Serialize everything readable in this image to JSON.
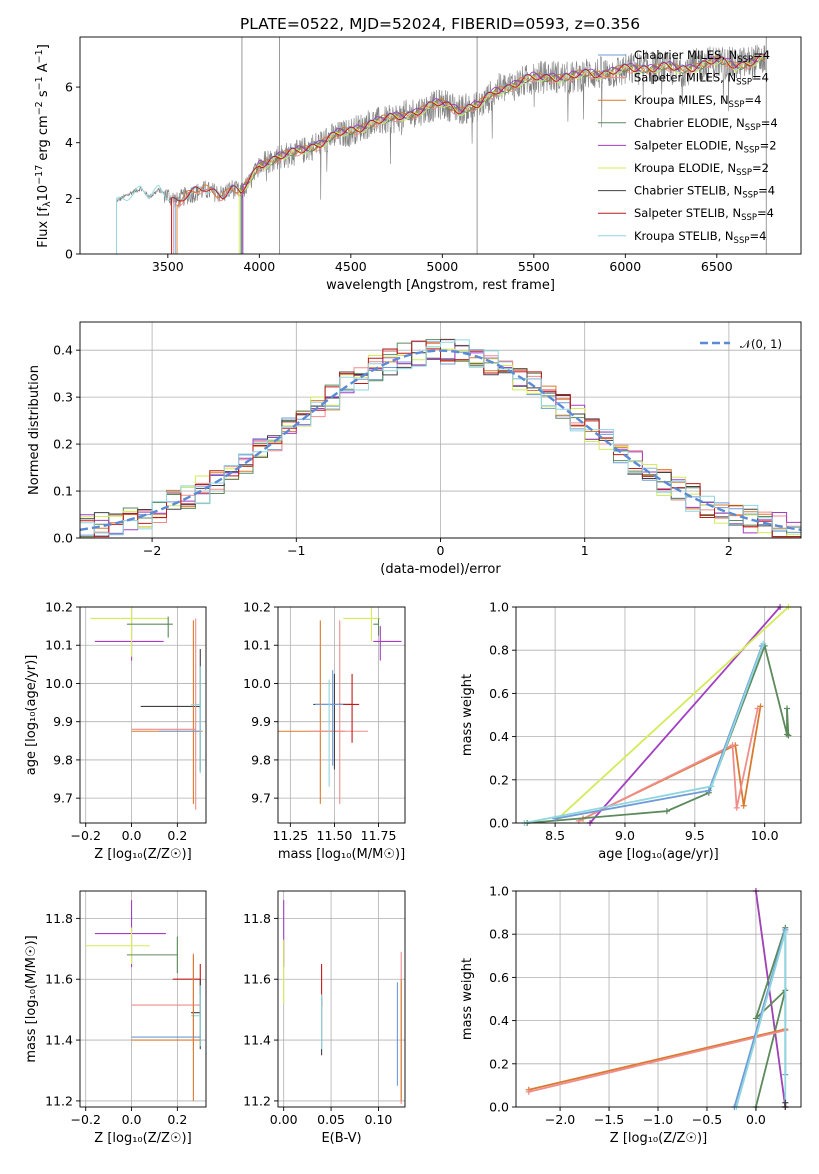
{
  "title": "PLATE=0522, MJD=52024, FIBERID=0593, z=0.356",
  "colors": {
    "chabrier_miles": "#6f9bd9",
    "salpeter_miles": "#f08c8c",
    "kroupa_miles": "#d97b2e",
    "chabrier_elodie": "#5c8a5c",
    "salpeter_elodie": "#a23fc2",
    "kroupa_elodie": "#d4eb5a",
    "chabrier_stelib": "#404040",
    "salpeter_stelib": "#c01a1a",
    "kroupa_stelib": "#8fd6df",
    "gaussian": "#5b8bd6",
    "data": "#808080"
  },
  "legend_spectrum": [
    {
      "label": "Chabrier MILES, N",
      "sub": "SSP",
      "suffix": "=4",
      "color": "#6f9bd9"
    },
    {
      "label": "Salpeter MILES, N",
      "sub": "SSP",
      "suffix": "=4",
      "color": "#f08c8c"
    },
    {
      "label": "Kroupa MILES, N",
      "sub": "SSP",
      "suffix": "=4",
      "color": "#d97b2e"
    },
    {
      "label": "Chabrier ELODIE, N",
      "sub": "SSP",
      "suffix": "=4",
      "color": "#5c8a5c"
    },
    {
      "label": "Salpeter ELODIE, N",
      "sub": "SSP",
      "suffix": "=2",
      "color": "#a23fc2"
    },
    {
      "label": "Kroupa ELODIE, N",
      "sub": "SSP",
      "suffix": "=2",
      "color": "#d4eb5a"
    },
    {
      "label": "Chabrier STELIB, N",
      "sub": "SSP",
      "suffix": "=4",
      "color": "#404040"
    },
    {
      "label": "Salpeter STELIB, N",
      "sub": "SSP",
      "suffix": "=4",
      "color": "#c01a1a"
    },
    {
      "label": "Kroupa STELIB, N",
      "sub": "SSP",
      "suffix": "=4",
      "color": "#8fd6df"
    }
  ],
  "chart_data": [
    {
      "id": "spectrum",
      "type": "line",
      "xlabel": "wavelength [Angstrom, rest frame]",
      "ylabel_parts": [
        "Flux [f",
        "λ",
        "10",
        "−17",
        " erg cm",
        "−2",
        " s",
        "−1",
        " A",
        "−1",
        "]"
      ],
      "xlim": [
        3020,
        6960
      ],
      "ylim": [
        0,
        7.8
      ],
      "xticks": [
        3500,
        4000,
        4500,
        5000,
        5500,
        6000,
        6500
      ],
      "yticks": [
        0,
        2,
        4,
        6
      ],
      "model_anchor": {
        "x": [
          3220,
          3300,
          3350,
          3400,
          3450,
          3500,
          3550,
          3600,
          3700,
          3800,
          3850,
          3900,
          3950,
          4000,
          4100,
          4200,
          4300,
          4400,
          4500,
          4600,
          4700,
          4800,
          4900,
          5000,
          5100,
          5200,
          5300,
          5400,
          5500,
          5600,
          5700,
          5800,
          5900,
          6000,
          6100,
          6200,
          6300,
          6400,
          6500,
          6600,
          6700,
          6765
        ],
        "y": [
          1.9,
          2.2,
          2.35,
          2.05,
          2.3,
          2.1,
          1.9,
          2.1,
          2.3,
          2.15,
          2.35,
          2.2,
          2.6,
          3.2,
          3.5,
          3.6,
          3.9,
          4.2,
          4.4,
          4.7,
          4.8,
          5.0,
          5.2,
          5.4,
          5.2,
          5.3,
          5.9,
          6.1,
          6.3,
          6.4,
          6.3,
          6.5,
          6.5,
          6.6,
          6.7,
          6.7,
          6.6,
          6.8,
          6.9,
          6.8,
          6.9,
          7.0
        ]
      },
      "data_range": [
        3220,
        6765
      ]
    },
    {
      "id": "residuals",
      "type": "histogram",
      "xlabel": "(data-model)/error",
      "ylabel": "Normed distribution",
      "xlim": [
        -2.5,
        2.5
      ],
      "ylim": [
        0,
        0.46
      ],
      "xticks": [
        -2,
        -1,
        0,
        1,
        2
      ],
      "xtick_labels": [
        "−2",
        "−1",
        "0",
        "1",
        "2"
      ],
      "yticks": [
        0.0,
        0.1,
        0.2,
        0.3,
        0.4
      ],
      "ytick_labels": [
        "0.0",
        "0.1",
        "0.2",
        "0.3",
        "0.4"
      ],
      "legend_label": "𝒩(0, 1)",
      "bin_width": 0.1
    },
    {
      "id": "age-vs-z",
      "type": "errorbar",
      "xlabel": "Z [log₁₀(Z/Z☉)]",
      "ylabel": "age  [log₁₀(age/yr)]",
      "xlim": [
        -0.225,
        0.325
      ],
      "ylim": [
        9.635,
        10.2
      ],
      "xticks": [
        -0.2,
        0.0,
        0.2
      ],
      "xtick_labels": [
        "−0.2",
        "0.0",
        "0.2"
      ],
      "yticks": [
        9.7,
        9.8,
        9.9,
        10.0,
        10.1,
        10.2
      ],
      "ytick_labels": [
        "9.7",
        "9.8",
        "9.9",
        "10.0",
        "10.1",
        "10.2"
      ],
      "points": [
        {
          "x": 0.0,
          "y": 10.11,
          "xerr": [
            0.16,
            0.14
          ],
          "yerr": [
            0.05,
            0.1
          ],
          "c": "#a23fc2"
        },
        {
          "x": 0.0,
          "y": 10.17,
          "xerr": [
            0.18,
            0.16
          ],
          "yerr": [
            0.1,
            0.05
          ],
          "c": "#d4eb5a"
        },
        {
          "x": 0.16,
          "y": 10.155,
          "xerr": [
            0.18,
            0.02
          ],
          "yerr": [
            0.035,
            0.02
          ],
          "c": "#5c8a5c"
        },
        {
          "x": 0.3,
          "y": 9.94,
          "xerr": [
            0.26,
            0.0
          ],
          "yerr": [
            0.17,
            0.15
          ],
          "c": "#404040"
        },
        {
          "x": 0.27,
          "y": 9.875,
          "xerr": [
            0.27,
            0.04
          ],
          "yerr": [
            0.19,
            0.29
          ],
          "c": "#d97b2e"
        },
        {
          "x": 0.28,
          "y": 9.88,
          "xerr": [
            0.28,
            0.0
          ],
          "yerr": [
            0.21,
            0.29
          ],
          "c": "#f08c8c"
        },
        {
          "x": 0.3,
          "y": 9.875,
          "xerr": [
            0.18,
            0.0
          ],
          "yerr": [
            0.0,
            0.07
          ],
          "c": "#6f9bd9"
        },
        {
          "x": 0.3,
          "y": 9.945,
          "xerr": [
            0.04,
            0.0
          ],
          "yerr": [
            0.18,
            0.1
          ],
          "c": "#8fd6df"
        }
      ]
    },
    {
      "id": "age-vs-mass",
      "type": "errorbar",
      "xlabel": "mass [log₁₀(M/M☉)]",
      "xlim": [
        11.18,
        11.9
      ],
      "ylim": [
        9.635,
        10.2
      ],
      "xticks": [
        11.25,
        11.5,
        11.75
      ],
      "xtick_labels": [
        "11.25",
        "11.50",
        "11.75"
      ],
      "yticks": [
        9.7,
        9.8,
        9.9,
        10.0,
        10.1,
        10.2
      ],
      "ytick_labels": [
        "9.7",
        "9.8",
        "9.9",
        "10.0",
        "10.1",
        "10.2"
      ],
      "points": [
        {
          "x": 11.71,
          "y": 10.17,
          "xerr": [
            0.16,
            0.05
          ],
          "yerr": [
            0.06,
            0.04
          ],
          "c": "#d4eb5a"
        },
        {
          "x": 11.76,
          "y": 10.11,
          "xerr": [
            0.04,
            0.12
          ],
          "yerr": [
            0.05,
            0.04
          ],
          "c": "#a23fc2"
        },
        {
          "x": 11.75,
          "y": 10.155,
          "xerr": [
            0.03,
            0.0
          ],
          "yerr": [
            0.03,
            0.015
          ],
          "c": "#5c8a5c"
        },
        {
          "x": 11.42,
          "y": 9.875,
          "xerr": [
            0.24,
            0.14
          ],
          "yerr": [
            0.19,
            0.29
          ],
          "c": "#d97b2e"
        },
        {
          "x": 11.53,
          "y": 9.875,
          "xerr": [
            0.17,
            0.16
          ],
          "yerr": [
            0.19,
            0.29
          ],
          "c": "#f08c8c"
        },
        {
          "x": 11.5,
          "y": 9.945,
          "xerr": [
            0.12,
            0.1
          ],
          "yerr": [
            0.17,
            0.08
          ],
          "c": "#404040"
        },
        {
          "x": 11.6,
          "y": 9.945,
          "xerr": [
            0.08,
            0.04
          ],
          "yerr": [
            0.1,
            0.08
          ],
          "c": "#c01a1a"
        },
        {
          "x": 11.49,
          "y": 9.945,
          "xerr": [
            0.1,
            0.06
          ],
          "yerr": [
            0.16,
            0.09
          ],
          "c": "#6f9bd9"
        },
        {
          "x": 11.47,
          "y": 9.87,
          "xerr": [
            0.0,
            0.0
          ],
          "yerr": [
            0.14,
            0.14
          ],
          "c": "#8fd6df"
        }
      ]
    },
    {
      "id": "weight-vs-age",
      "type": "line",
      "xlabel": "age  [log₁₀(age/yr)]",
      "ylabel": "mass weight",
      "xlim": [
        8.22,
        10.26
      ],
      "ylim": [
        0,
        1
      ],
      "xticks": [
        8.5,
        9.0,
        9.5,
        10.0
      ],
      "xtick_labels": [
        "8.5",
        "9.0",
        "9.5",
        "10.0"
      ],
      "yticks": [
        0,
        0.2,
        0.4,
        0.6,
        0.8,
        1.0
      ],
      "ytick_labels": [
        "0.0",
        "0.2",
        "0.4",
        "0.6",
        "0.8",
        "1.0"
      ],
      "series": [
        {
          "c": "#a23fc2",
          "x": [
            8.75,
            10.11
          ],
          "y": [
            0.0,
            1.0
          ]
        },
        {
          "c": "#d4eb5a",
          "x": [
            8.52,
            10.17
          ],
          "y": [
            0.02,
            1.0
          ]
        },
        {
          "c": "#d97b2e",
          "x": [
            8.7,
            9.79,
            9.85,
            9.97
          ],
          "y": [
            0.02,
            0.36,
            0.08,
            0.54
          ]
        },
        {
          "c": "#f08c8c",
          "x": [
            8.67,
            9.77,
            9.8,
            9.95
          ],
          "y": [
            0.01,
            0.36,
            0.07,
            0.53
          ]
        },
        {
          "c": "#5c8a5c",
          "x": [
            8.3,
            9.3,
            9.6,
            10.0,
            10.16,
            10.16,
            10.17
          ],
          "y": [
            0.0,
            0.055,
            0.14,
            0.82,
            0.41,
            0.53,
            0.405
          ]
        },
        {
          "c": "#6f9bd9",
          "x": [
            8.5,
            9.6,
            9.98
          ],
          "y": [
            0.02,
            0.15,
            0.82
          ]
        },
        {
          "c": "#8fd6df",
          "x": [
            8.28,
            9.62,
            9.99
          ],
          "y": [
            0.0,
            0.17,
            0.83
          ]
        }
      ]
    },
    {
      "id": "mass-vs-z",
      "type": "errorbar",
      "xlabel": "Z [log₁₀(Z/Z☉)]",
      "ylabel": "mass [log₁₀(M/M☉)]",
      "xlim": [
        -0.225,
        0.325
      ],
      "ylim": [
        11.18,
        11.89
      ],
      "xticks": [
        -0.2,
        0.0,
        0.2
      ],
      "xtick_labels": [
        "−0.2",
        "0.0",
        "0.2"
      ],
      "yticks": [
        11.2,
        11.4,
        11.6,
        11.8
      ],
      "ytick_labels": [
        "11.2",
        "11.4",
        "11.6",
        "11.8"
      ],
      "points": [
        {
          "x": 0.0,
          "y": 11.75,
          "xerr": [
            0.16,
            0.15
          ],
          "yerr": [
            0.11,
            0.11
          ],
          "c": "#a23fc2"
        },
        {
          "x": 0.0,
          "y": 11.71,
          "xerr": [
            0.2,
            0.08
          ],
          "yerr": [
            0.06,
            0.06
          ],
          "c": "#d4eb5a"
        },
        {
          "x": 0.2,
          "y": 11.68,
          "xerr": [
            0.22,
            0.0
          ],
          "yerr": [
            0.06,
            0.06
          ],
          "c": "#5c8a5c"
        },
        {
          "x": 0.3,
          "y": 11.6,
          "xerr": [
            0.12,
            0.0
          ],
          "yerr": [
            0.05,
            0.05
          ],
          "c": "#c01a1a"
        },
        {
          "x": 0.27,
          "y": 11.515,
          "xerr": [
            0.27,
            0.03
          ],
          "yerr": [
            0.15,
            0.17
          ],
          "c": "#f08c8c"
        },
        {
          "x": 0.3,
          "y": 11.49,
          "xerr": [
            0.04,
            0.0
          ],
          "yerr": [
            0.12,
            0.11
          ],
          "c": "#404040"
        },
        {
          "x": 0.3,
          "y": 11.48,
          "xerr": [
            0.04,
            0.0
          ],
          "yerr": [
            0.1,
            0.1
          ],
          "c": "#8fd6df"
        },
        {
          "x": 0.3,
          "y": 11.41,
          "xerr": [
            0.3,
            0.0
          ],
          "yerr": [
            0.0,
            0.0
          ],
          "c": "#6f9bd9"
        },
        {
          "x": 0.27,
          "y": 11.4,
          "xerr": [
            0.27,
            0.03
          ],
          "yerr": [
            0.2,
            0.28
          ],
          "c": "#d97b2e"
        }
      ]
    },
    {
      "id": "mass-vs-ebv",
      "type": "errorbar",
      "xlabel": "E(B-V)",
      "xlim": [
        -0.006,
        0.128
      ],
      "ylim": [
        11.18,
        11.89
      ],
      "xticks": [
        0.0,
        0.05,
        0.1
      ],
      "xtick_labels": [
        "0.00",
        "0.05",
        "0.10"
      ],
      "yticks": [
        11.2,
        11.4,
        11.6,
        11.8
      ],
      "ytick_labels": [
        "11.2",
        "11.4",
        "11.6",
        "11.8"
      ],
      "points": [
        {
          "x": 0.0,
          "y": 11.75,
          "xerr": [
            0,
            0
          ],
          "yerr": [
            0.11,
            0.11
          ],
          "c": "#a23fc2"
        },
        {
          "x": 0.0,
          "y": 11.62,
          "xerr": [
            0,
            0
          ],
          "yerr": [
            0.1,
            0.11
          ],
          "c": "#d4eb5a"
        },
        {
          "x": 0.04,
          "y": 11.56,
          "xerr": [
            0,
            0
          ],
          "yerr": [
            0.05,
            0.09
          ],
          "c": "#c01a1a"
        },
        {
          "x": 0.04,
          "y": 11.44,
          "xerr": [
            0,
            0
          ],
          "yerr": [
            0.09,
            0.1
          ],
          "c": "#404040"
        },
        {
          "x": 0.04,
          "y": 11.47,
          "xerr": [
            0,
            0
          ],
          "yerr": [
            0.1,
            0.08
          ],
          "c": "#8fd6df"
        },
        {
          "x": 0.12,
          "y": 11.42,
          "xerr": [
            0,
            0
          ],
          "yerr": [
            0.17,
            0.17
          ],
          "c": "#6f9bd9"
        },
        {
          "x": 0.124,
          "y": 11.49,
          "xerr": [
            0,
            0
          ],
          "yerr": [
            0.3,
            0.2
          ],
          "c": "#f08c8c"
        },
        {
          "x": 0.124,
          "y": 11.4,
          "xerr": [
            0,
            0
          ],
          "yerr": [
            0.2,
            0.2
          ],
          "c": "#d97b2e"
        }
      ]
    },
    {
      "id": "weight-vs-z",
      "type": "line",
      "xlabel": "Z [log₁₀(Z/Z☉)]",
      "ylabel": "mass weight",
      "xlim": [
        -2.45,
        0.46
      ],
      "ylim": [
        0,
        1
      ],
      "xticks": [
        -2.0,
        -1.5,
        -1.0,
        -0.5,
        0.0
      ],
      "xtick_labels": [
        "−2.0",
        "−1.5",
        "−1.0",
        "−0.5",
        "0.0"
      ],
      "yticks": [
        0,
        0.2,
        0.4,
        0.6,
        0.8,
        1.0
      ],
      "ytick_labels": [
        "0.0",
        "0.2",
        "0.4",
        "0.6",
        "0.8",
        "1.0"
      ],
      "series": [
        {
          "c": "#d4eb5a",
          "x": [
            0.0,
            0.3
          ],
          "y": [
            1.0,
            0.0
          ]
        },
        {
          "c": "#a23fc2",
          "x": [
            0.0,
            0.3
          ],
          "y": [
            1.0,
            0.0
          ]
        },
        {
          "c": "#5c8a5c",
          "x": [
            0.0,
            0.3,
            0.0,
            0.3,
            0.0
          ],
          "y": [
            0.41,
            0.83,
            0.41,
            0.54,
            0.0
          ]
        },
        {
          "c": "#d97b2e",
          "x": [
            -2.32,
            0.3
          ],
          "y": [
            0.08,
            0.36
          ]
        },
        {
          "c": "#f08c8c",
          "x": [
            -2.32,
            0.3
          ],
          "y": [
            0.07,
            0.355
          ]
        },
        {
          "c": "#6f9bd9",
          "x": [
            -0.22,
            0.3,
            0.3
          ],
          "y": [
            0.0,
            0.82,
            0.15
          ]
        },
        {
          "c": "#8fd6df",
          "x": [
            -0.2,
            0.3,
            0.3
          ],
          "y": [
            0.0,
            0.81,
            0.02
          ]
        },
        {
          "c": "#404040",
          "x": [
            0.3,
            0.3
          ],
          "y": [
            0.0,
            0.02
          ]
        }
      ]
    }
  ]
}
